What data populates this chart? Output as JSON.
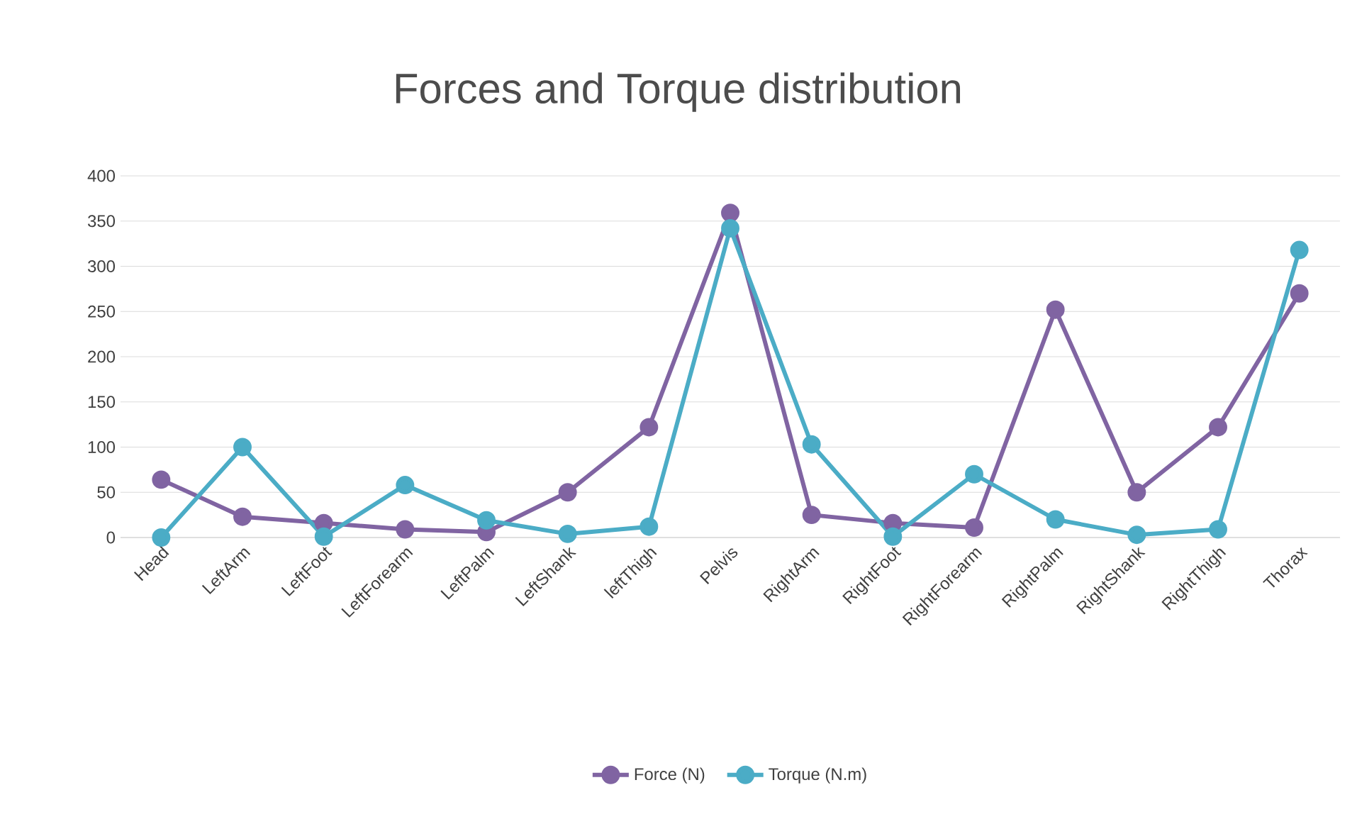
{
  "chart_data": {
    "type": "line",
    "title": "Forces and Torque distribution",
    "categories": [
      "Head",
      "LeftArm",
      "LeftFoot",
      "LeftForearm",
      "LeftPalm",
      "LeftShank",
      "leftThigh",
      "Pelvis",
      "RightArm",
      "RightFoot",
      "RightForearm",
      "RightPalm",
      "RightShank",
      "RightThigh",
      "Thorax"
    ],
    "series": [
      {
        "name": "Force (N)",
        "color": "#8064a2",
        "values": [
          64,
          23,
          16,
          9,
          6,
          50,
          122,
          359,
          25,
          16,
          11,
          252,
          50,
          122,
          270
        ]
      },
      {
        "name": "Torque (N.m)",
        "color": "#4bacc6",
        "values": [
          0,
          100,
          1,
          58,
          19,
          4,
          12,
          342,
          103,
          1,
          70,
          20,
          3,
          9,
          318
        ]
      }
    ],
    "ylim": [
      0,
      400
    ],
    "yticks": [
      0,
      50,
      100,
      150,
      200,
      250,
      300,
      350,
      400
    ],
    "grid": "y",
    "legend": "bottom",
    "marker": "circle",
    "line_style": "solid"
  }
}
